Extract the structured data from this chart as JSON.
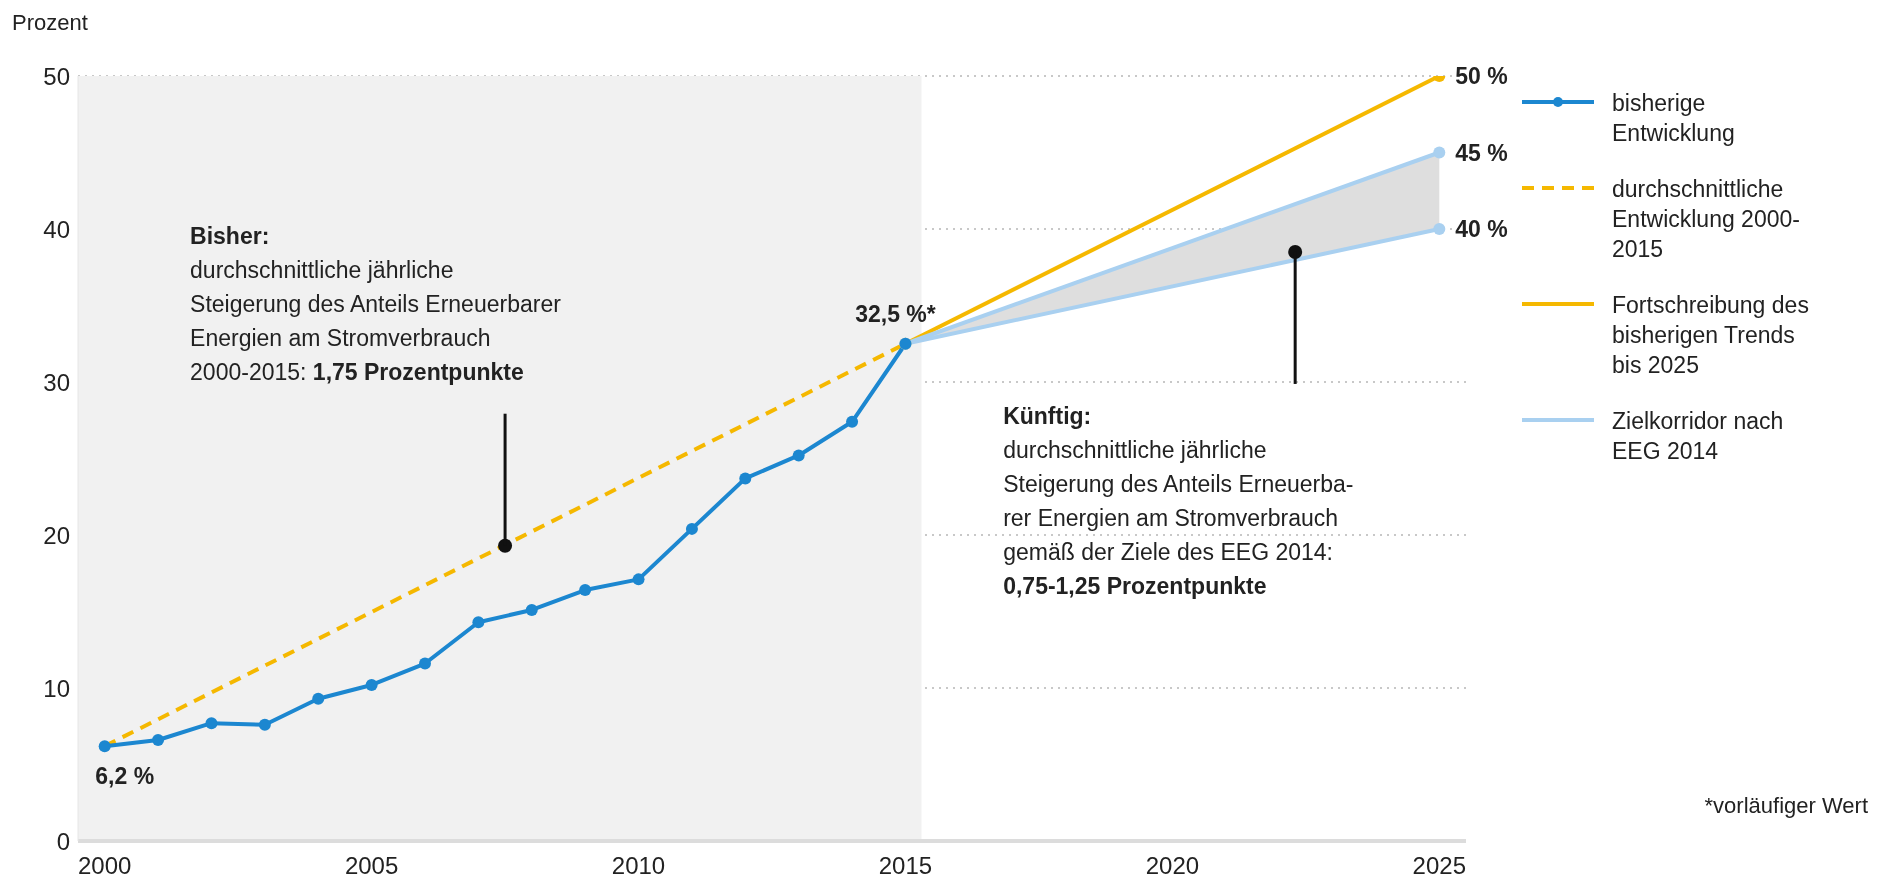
{
  "chart_data": {
    "type": "line",
    "ylabel": "Prozent",
    "xlim": [
      1999.5,
      2025.5
    ],
    "xticks": [
      2000,
      2005,
      2010,
      2015,
      2020,
      2025
    ],
    "ylim": [
      0,
      50
    ],
    "yticks": [
      0,
      10,
      20,
      30,
      40,
      50
    ],
    "grid": "y",
    "legend": "right",
    "bands": [
      {
        "axis": "x",
        "from": 1999.5,
        "to": 2015.3,
        "color": "#f1f1f1"
      }
    ],
    "series": [
      {
        "name": "durchschnittliche Entwicklung 2000-2015",
        "color": "#f5b800",
        "line_style": "dashed",
        "x": [
          2000,
          2015
        ],
        "values": [
          6.2,
          32.5
        ]
      },
      {
        "name": "Fortschreibung des bisherigen Trends bis 2025",
        "color": "#f5b800",
        "line_style": "solid",
        "marker": "circle",
        "x": [
          2015,
          2025
        ],
        "values": [
          32.5,
          50
        ]
      },
      {
        "name": "Zielkorridor nach EEG 2014",
        "color": "#a9d0f0",
        "line_style": "solid",
        "marker": "circle",
        "x": [
          2015,
          2025
        ],
        "values": [
          32.5,
          45
        ]
      },
      {
        "color": "#a9d0f0",
        "line_style": "solid",
        "marker": "circle",
        "x": [
          2015,
          2025
        ],
        "values": [
          32.5,
          40
        ],
        "lower": [
          32.5,
          40
        ],
        "upper": [
          32.5,
          45
        ]
      },
      {
        "name": "bisherige Entwicklung",
        "color": "#1c87d0",
        "line_style": "solid",
        "marker": "circle",
        "x": [
          2000,
          2001,
          2002,
          2003,
          2004,
          2005,
          2006,
          2007,
          2008,
          2009,
          2010,
          2011,
          2012,
          2013,
          2014,
          2015
        ],
        "values": [
          6.2,
          6.6,
          7.7,
          7.6,
          9.3,
          10.2,
          11.6,
          14.3,
          15.1,
          16.4,
          17.1,
          20.4,
          23.7,
          25.2,
          27.4,
          32.5
        ]
      }
    ],
    "annotations": [
      {
        "text": "Bisher:\ndurchschnittliche jährliche\nSteigerung des Anteils Erneuerbarer\nEnergien am Stromverbrauch\n2000-2015: 1,75 Prozentpunkte",
        "x": 2007.5,
        "y": 19.3
      },
      {
        "text": "Künftig:\ndurchschnittliche jährliche\nSteigerung des Anteils Erneuerba-\nrer Energien am Stromverbrauch\ngemäß der Ziele des EEG 2014:\n0,75-1,25  Prozentpunkte",
        "x": 2022.3,
        "y": 38.5
      },
      {
        "text": "6,2 %",
        "x": 2000,
        "y": 6.2
      },
      {
        "text": "32,5 %*",
        "x": 2015,
        "y": 32.5
      },
      {
        "text": "50 %",
        "x": 2025,
        "y": 50
      },
      {
        "text": "45 %",
        "x": 2025,
        "y": 45
      },
      {
        "text": "40 %",
        "x": 2025,
        "y": 40
      },
      "*vorläufiger Wert"
    ]
  }
}
